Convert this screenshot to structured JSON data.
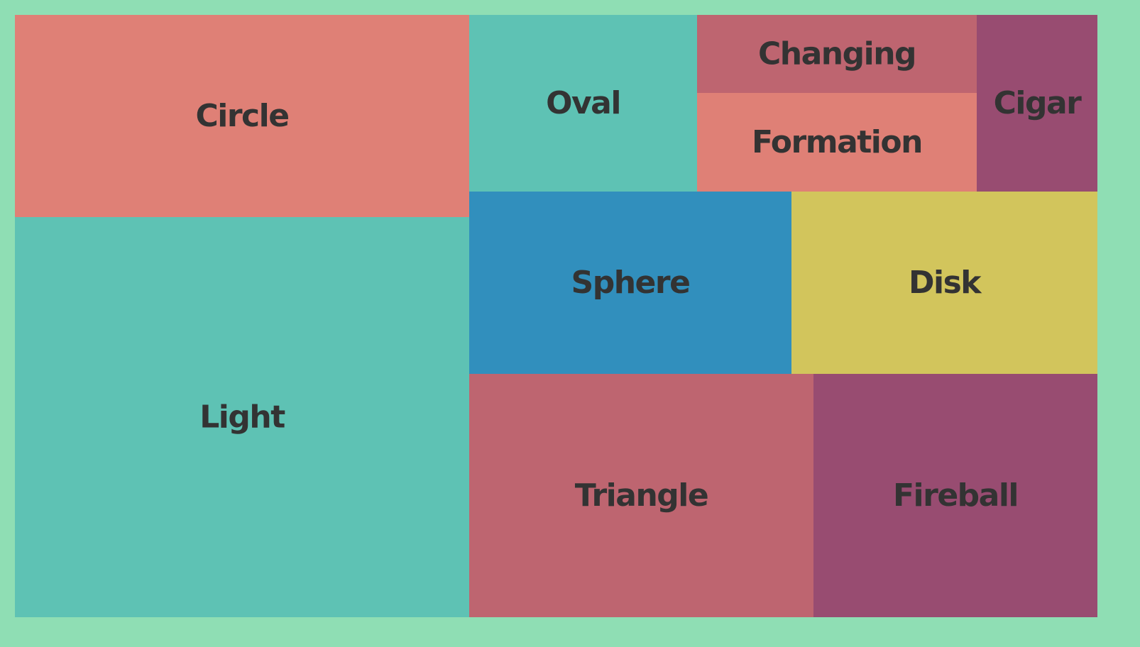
{
  "chart_data": {
    "type": "treemap",
    "title": "",
    "background_color": "#8fdeb4",
    "label_color": "#333333",
    "items": [
      {
        "label": "Light",
        "value": 565,
        "color": "#5ec2b4"
      },
      {
        "label": "Circle",
        "value": 188,
        "color": "#df8076"
      },
      {
        "label": "Fireball",
        "value": 141,
        "color": "#984c71"
      },
      {
        "label": "Triangle",
        "value": 170,
        "color": "#be6570"
      },
      {
        "label": "Sphere",
        "value": 119,
        "color": "#318fbd"
      },
      {
        "label": "Disk",
        "value": 114,
        "color": "#d2c55c"
      },
      {
        "label": "Oval",
        "value": 82,
        "color": "#5ec2b4"
      },
      {
        "label": "Changing",
        "value": 44,
        "color": "#be6570"
      },
      {
        "label": "Formation",
        "value": 56,
        "color": "#df8076"
      },
      {
        "label": "Cigar",
        "value": 44,
        "color": "#984c71"
      }
    ]
  }
}
